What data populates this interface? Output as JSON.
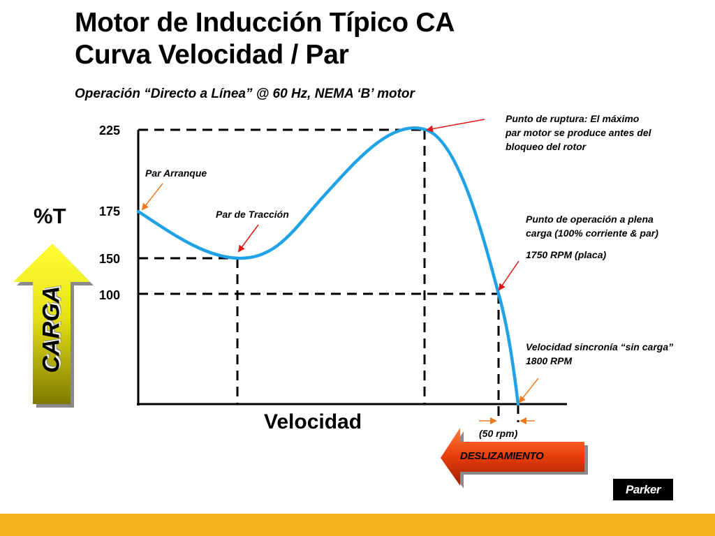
{
  "title": {
    "line1": "Motor de Inducción Típico CA",
    "line2": "Curva Velocidad / Par"
  },
  "subtitle": "Operación “Directo a Línea” @ 60 Hz,  NEMA ‘B’ motor",
  "colors": {
    "curve": "#1fa2e6",
    "annotation_arrow_orange": "#f07a20",
    "annotation_arrow_red": "#e01818",
    "carga_arrow_top": "#ffff33",
    "carga_arrow_bottom": "#7f7a00",
    "deslizamiento_arrow": "#e63c0a",
    "footer": "#f4b41c"
  },
  "chart_data": {
    "type": "line",
    "ylabel": "%T",
    "xlabel": "Velocidad",
    "y_ticks": [
      "225",
      "175",
      "150",
      "100"
    ],
    "series": [
      {
        "points": [
          {
            "x": 0,
            "y": 172
          },
          {
            "x": 390,
            "y": 150
          },
          {
            "x": 1120,
            "y": 225
          },
          {
            "x": 1750,
            "y": 100
          },
          {
            "x": 1800,
            "y": 0
          }
        ]
      }
    ],
    "grid": false
  },
  "annotations": {
    "breakdown": [
      "Punto de ruptura:  El máximo",
      "par motor se produce antes del",
      "bloqueo del rotor"
    ],
    "starting": "Par Arranque",
    "pull_up": "Par de Tracción",
    "full_load": [
      "Punto de operación a plena",
      "carga (100% corriente & par)"
    ],
    "rated_speed": "1750 RPM  (placa)",
    "synchronous": [
      "Velocidad sincronía “sin carga”",
      "1800 RPM"
    ]
  },
  "carga_label": "CARGA",
  "slip": {
    "value": "(50 rpm)",
    "label": "DESLIZAMIENTO"
  },
  "logo": {
    "text": "Parker"
  }
}
